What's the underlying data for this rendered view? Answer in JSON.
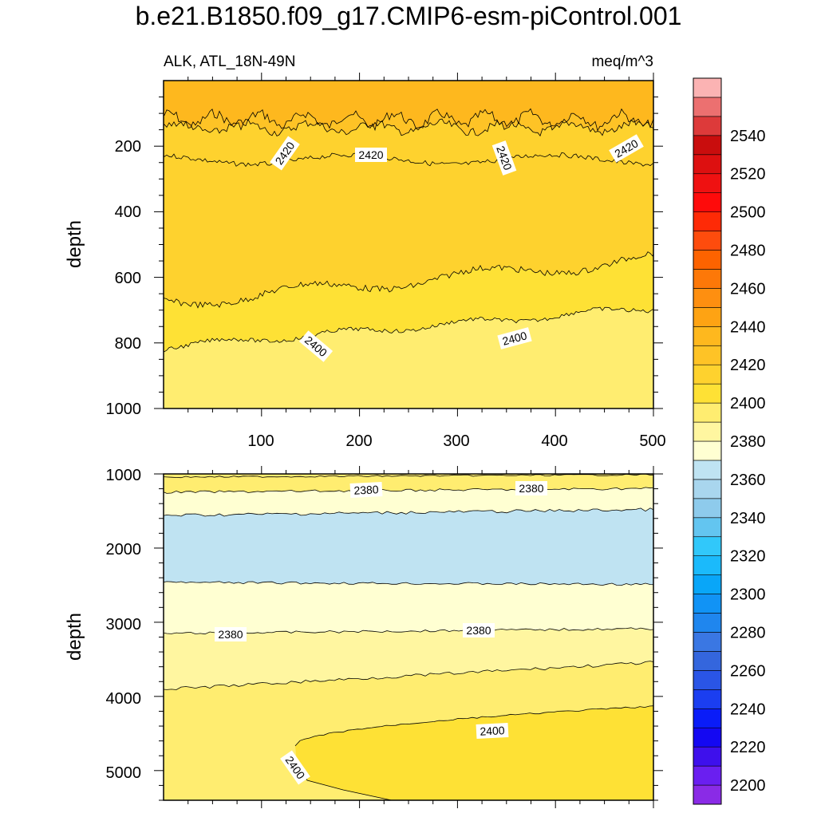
{
  "figure": {
    "title": "b.e21.B1850.f09_g17.CMIP6-esm-piControl.001",
    "left_string": "ALK, ATL_18N-49N",
    "right_string": "meq/m^3"
  },
  "chart_data": {
    "type": "contour",
    "variable": "ALK",
    "region": "ATL_18N-49N",
    "units": "meq/m^3",
    "x_range": [
      0,
      500
    ],
    "x_ticks": [
      "100",
      "200",
      "300",
      "400",
      "500"
    ],
    "colorbar": {
      "levels": [
        2200,
        2210,
        2220,
        2230,
        2240,
        2250,
        2260,
        2270,
        2280,
        2290,
        2300,
        2310,
        2320,
        2330,
        2340,
        2350,
        2360,
        2370,
        2380,
        2390,
        2400,
        2410,
        2420,
        2430,
        2440,
        2450,
        2460,
        2470,
        2480,
        2490,
        2500,
        2510,
        2520,
        2530,
        2540,
        2550
      ],
      "labels": [
        "2200",
        "2220",
        "2240",
        "2260",
        "2280",
        "2300",
        "2320",
        "2340",
        "2360",
        "2380",
        "2400",
        "2420",
        "2440",
        "2460",
        "2480",
        "2500",
        "2520",
        "2540"
      ],
      "colors": [
        "#8a2be6",
        "#6a1ff0",
        "#3e10ec",
        "#1408f2",
        "#0a1cf8",
        "#1b3ef0",
        "#2a55e6",
        "#3466dd",
        "#3a77e3",
        "#1f86ee",
        "#1193f5",
        "#09a6f8",
        "#1bbafb",
        "#31c8fa",
        "#63c5f0",
        "#8ecbec",
        "#a9d6ee",
        "#bfe3f2",
        "#ffffd2",
        "#fff6a0",
        "#ffed70",
        "#fee135",
        "#fed22e",
        "#fec326",
        "#feb81e",
        "#fea313",
        "#fe8f10",
        "#fd7808",
        "#fd6300",
        "#fe4c0d",
        "#fe2a06",
        "#fe0b0b",
        "#ef1111",
        "#dd1010",
        "#c90d0d",
        "#dd3a3a",
        "#ec7070",
        "#fbb3b3"
      ]
    },
    "panels": [
      {
        "name": "upper",
        "y_range": [
          0,
          1000
        ],
        "y_ticks": [
          "200",
          "400",
          "600",
          "800",
          "1000"
        ],
        "ylabel": "depth",
        "contour_labels": [
          "2420",
          "2420",
          "2420",
          "2420",
          "2400",
          "2400"
        ]
      },
      {
        "name": "lower",
        "y_range": [
          1000,
          5400
        ],
        "y_ticks": [
          "1000",
          "2000",
          "3000",
          "4000",
          "5000"
        ],
        "ylabel": "depth",
        "contour_labels": [
          "2380",
          "2380",
          "2380",
          "2380",
          "2400",
          "2400"
        ]
      }
    ]
  }
}
